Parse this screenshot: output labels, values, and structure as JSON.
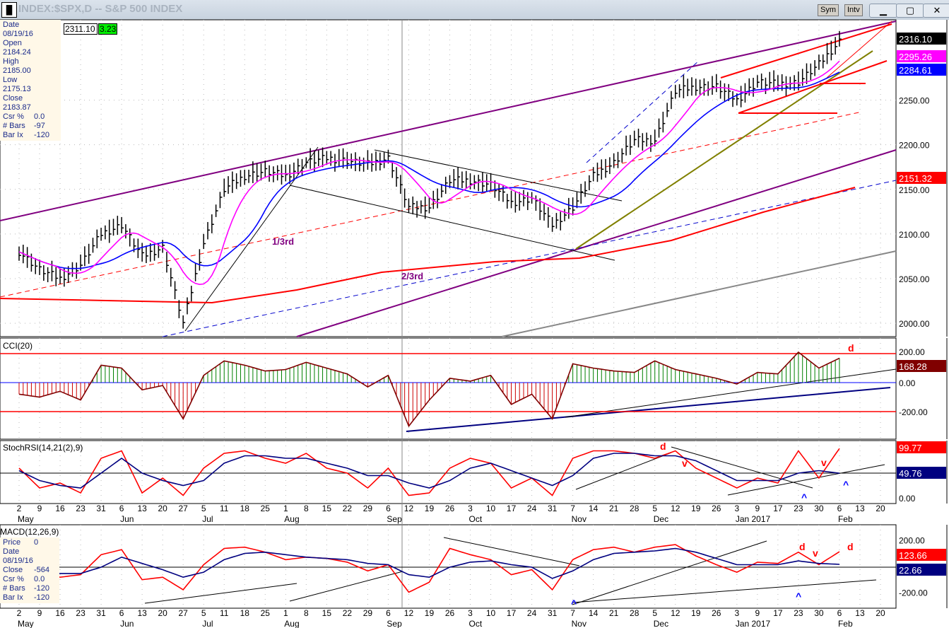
{
  "window": {
    "title": "INDEX:$SPX,D -- S&P 500 INDEX",
    "sym_button": "Sym",
    "intv_button": "Intv",
    "minimize": "▁",
    "maximize": "▢",
    "close": "✕"
  },
  "info_box": {
    "date_label": "Date",
    "date_value": "08/19/16",
    "rows": [
      [
        "Open",
        "2184.24"
      ],
      [
        "High",
        "2185.00"
      ],
      [
        "Low",
        "2175.13"
      ],
      [
        "Close",
        "2183.87"
      ],
      [
        "Csr %",
        "0.0"
      ],
      [
        "# Bars",
        "-97"
      ],
      [
        "Bar Ix",
        "-120"
      ]
    ],
    "cursor_price": "2311.10",
    "cursor_change": "3.23"
  },
  "macd_info": {
    "rows": [
      [
        "Price",
        "0"
      ],
      [
        "Date",
        "08/19/16"
      ],
      [
        "Close",
        "-564"
      ],
      [
        "Csr %",
        "0.0"
      ],
      [
        "# Bars",
        "-120"
      ],
      [
        "Bar Ix",
        "-120"
      ]
    ]
  },
  "chart_data": [
    {
      "type": "ohlc",
      "title": "INDEX:$SPX,D -- S&P 500 INDEX",
      "ylim": [
        1985,
        2340
      ],
      "yticks": [
        2000,
        2050,
        2100,
        2150,
        2200,
        2250
      ],
      "x": [
        "2",
        "9",
        "16",
        "23",
        "31",
        "6",
        "13",
        "20",
        "27",
        "5",
        "11",
        "18",
        "25",
        "1",
        "8",
        "15",
        "22",
        "29",
        "6",
        "12",
        "19",
        "26",
        "3",
        "10",
        "17",
        "24",
        "31",
        "7",
        "14",
        "21",
        "28",
        "5",
        "12",
        "19",
        "26",
        "3",
        "9",
        "17",
        "23",
        "30",
        "6",
        "13",
        "20"
      ],
      "months": [
        [
          "May",
          0
        ],
        [
          "Jun",
          5
        ],
        [
          "Jul",
          9
        ],
        [
          "Aug",
          13
        ],
        [
          "Sep",
          18
        ],
        [
          "Oct",
          22
        ],
        [
          "Nov",
          27
        ],
        [
          "Dec",
          31
        ],
        [
          "Jan 2017",
          35
        ],
        [
          "Feb",
          40
        ]
      ],
      "weekly_close": [
        2080,
        2060,
        2050,
        2065,
        2100,
        2110,
        2075,
        2085,
        2000,
        2090,
        2150,
        2165,
        2170,
        2165,
        2180,
        2185,
        2182,
        2178,
        2185,
        2130,
        2130,
        2160,
        2160,
        2155,
        2135,
        2140,
        2110,
        2130,
        2165,
        2180,
        2205,
        2205,
        2260,
        2265,
        2265,
        2250,
        2270,
        2268,
        2270,
        2290,
        2316
      ],
      "last_labels": {
        "price": "2316.10",
        "ma_fast": "2295.26",
        "ma_slow": "2284.61",
        "ma_200": "2151.32"
      },
      "annotations": [
        "1/3rd",
        "2/3rd"
      ],
      "colors": {
        "price": "#000000",
        "ma_fast": "#ff00ff",
        "ma_slow": "#0000ff",
        "ma_200": "#ff0000",
        "channel": "#800080"
      }
    },
    {
      "type": "line",
      "title": "CCI(20)",
      "ylim": [
        -380,
        300
      ],
      "yticks": [
        "200.00",
        "0.00",
        "-200.00"
      ],
      "last": "168.28",
      "annotation": "d",
      "values": [
        -80,
        -100,
        -60,
        -120,
        120,
        100,
        -50,
        -20,
        -250,
        50,
        150,
        120,
        80,
        90,
        140,
        100,
        60,
        -30,
        50,
        -300,
        -120,
        30,
        10,
        50,
        -150,
        -80,
        -250,
        130,
        100,
        80,
        70,
        150,
        90,
        60,
        30,
        -10,
        70,
        60,
        210,
        100,
        168.28
      ]
    },
    {
      "type": "line",
      "title": "StochRSI(14,21(2),9)",
      "ylim": [
        -5,
        110
      ],
      "yticks": [
        "0.00"
      ],
      "last": [
        "99.77",
        "49.76"
      ],
      "annotations": [
        "d",
        "v",
        "v",
        "^",
        "^"
      ],
      "series": [
        {
          "values": [
            60,
            20,
            30,
            10,
            80,
            95,
            10,
            40,
            5,
            60,
            90,
            95,
            80,
            70,
            90,
            60,
            50,
            20,
            60,
            5,
            10,
            60,
            80,
            70,
            20,
            40,
            5,
            80,
            95,
            95,
            90,
            80,
            95,
            60,
            40,
            20,
            40,
            30,
            95,
            40,
            99.77
          ],
          "color": "#ff0000"
        },
        {
          "values": [
            55,
            35,
            25,
            20,
            50,
            80,
            50,
            35,
            25,
            35,
            70,
            85,
            85,
            80,
            80,
            70,
            60,
            45,
            45,
            30,
            20,
            35,
            60,
            70,
            55,
            40,
            25,
            45,
            80,
            90,
            90,
            85,
            85,
            75,
            55,
            35,
            35,
            35,
            50,
            55,
            49.76
          ],
          "color": "#000080"
        }
      ]
    },
    {
      "type": "line",
      "title": "MACD(12,26,9)",
      "ylim": [
        -280,
        280
      ],
      "yticks": [
        "200.00",
        "-200.00"
      ],
      "last": [
        "123.66",
        "22.66"
      ],
      "annotations": [
        "d",
        "v",
        "d",
        "^",
        "^"
      ],
      "series": [
        {
          "values": [
            -50,
            -20,
            -80,
            -60,
            100,
            140,
            -100,
            -80,
            -180,
            20,
            150,
            160,
            120,
            60,
            80,
            70,
            40,
            -30,
            20,
            -200,
            -120,
            150,
            100,
            60,
            -60,
            -20,
            -180,
            60,
            140,
            160,
            120,
            160,
            180,
            90,
            20,
            -40,
            40,
            30,
            120,
            20,
            123.66
          ],
          "color": "#ff0000"
        },
        {
          "values": [
            -40,
            -40,
            -50,
            -50,
            0,
            80,
            30,
            -20,
            -80,
            -40,
            60,
            110,
            120,
            100,
            80,
            70,
            60,
            30,
            20,
            -60,
            -80,
            0,
            40,
            50,
            20,
            0,
            -90,
            -30,
            60,
            110,
            120,
            130,
            150,
            120,
            70,
            20,
            20,
            20,
            50,
            30,
            22.66
          ],
          "color": "#000080"
        }
      ]
    }
  ]
}
